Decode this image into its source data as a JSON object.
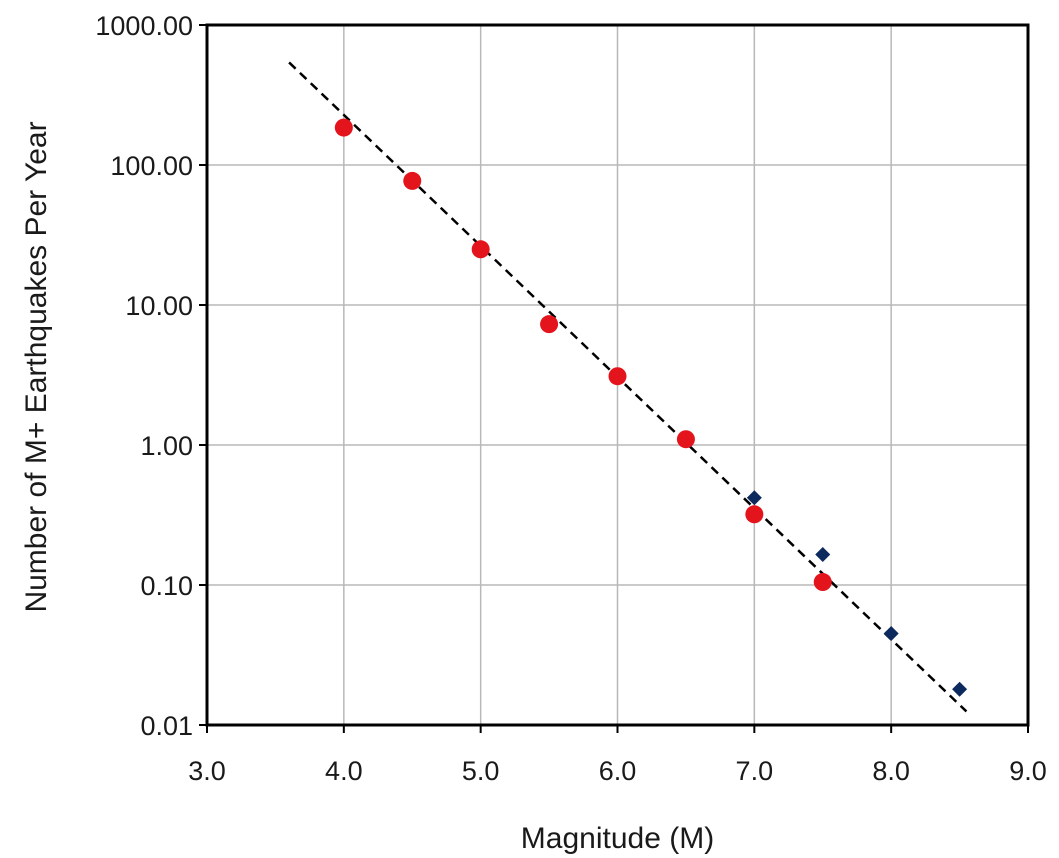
{
  "chart_data": {
    "type": "scatter",
    "title": "",
    "xlabel": "Magnitude (M)",
    "ylabel": "Number of M+ Earthquakes  Per Year",
    "xlim": [
      3.0,
      9.0
    ],
    "ylim": [
      0.01,
      1000
    ],
    "yscale": "log",
    "grid": true,
    "legend": "none",
    "x_ticks": [
      3.0,
      4.0,
      5.0,
      6.0,
      7.0,
      8.0,
      9.0
    ],
    "x_tick_labels": [
      "3.0",
      "4.0",
      "5.0",
      "6.0",
      "7.0",
      "8.0",
      "9.0"
    ],
    "y_ticks": [
      0.01,
      0.1,
      1,
      10,
      100,
      1000
    ],
    "y_tick_labels": [
      "0.01",
      "0.10",
      "1.00",
      "10.00",
      "100.00",
      "1000.00"
    ],
    "series": [
      {
        "marker": "diamond",
        "color": "#0d2a5e",
        "points": [
          {
            "x": 7.0,
            "y": 0.42
          },
          {
            "x": 7.5,
            "y": 0.165
          },
          {
            "x": 8.0,
            "y": 0.045
          },
          {
            "x": 8.5,
            "y": 0.018
          }
        ]
      },
      {
        "marker": "circle",
        "color": "#e3141c",
        "points": [
          {
            "x": 4.0,
            "y": 185
          },
          {
            "x": 4.5,
            "y": 77
          },
          {
            "x": 5.0,
            "y": 25
          },
          {
            "x": 5.5,
            "y": 7.3
          },
          {
            "x": 6.0,
            "y": 3.1
          },
          {
            "x": 6.5,
            "y": 1.1
          },
          {
            "x": 7.0,
            "y": 0.32
          },
          {
            "x": 7.5,
            "y": 0.105
          }
        ]
      }
    ],
    "trendline": {
      "style": "dashed",
      "color": "#000000",
      "points": [
        {
          "x": 3.6,
          "y": 540
        },
        {
          "x": 8.55,
          "y": 0.0125
        }
      ]
    }
  }
}
